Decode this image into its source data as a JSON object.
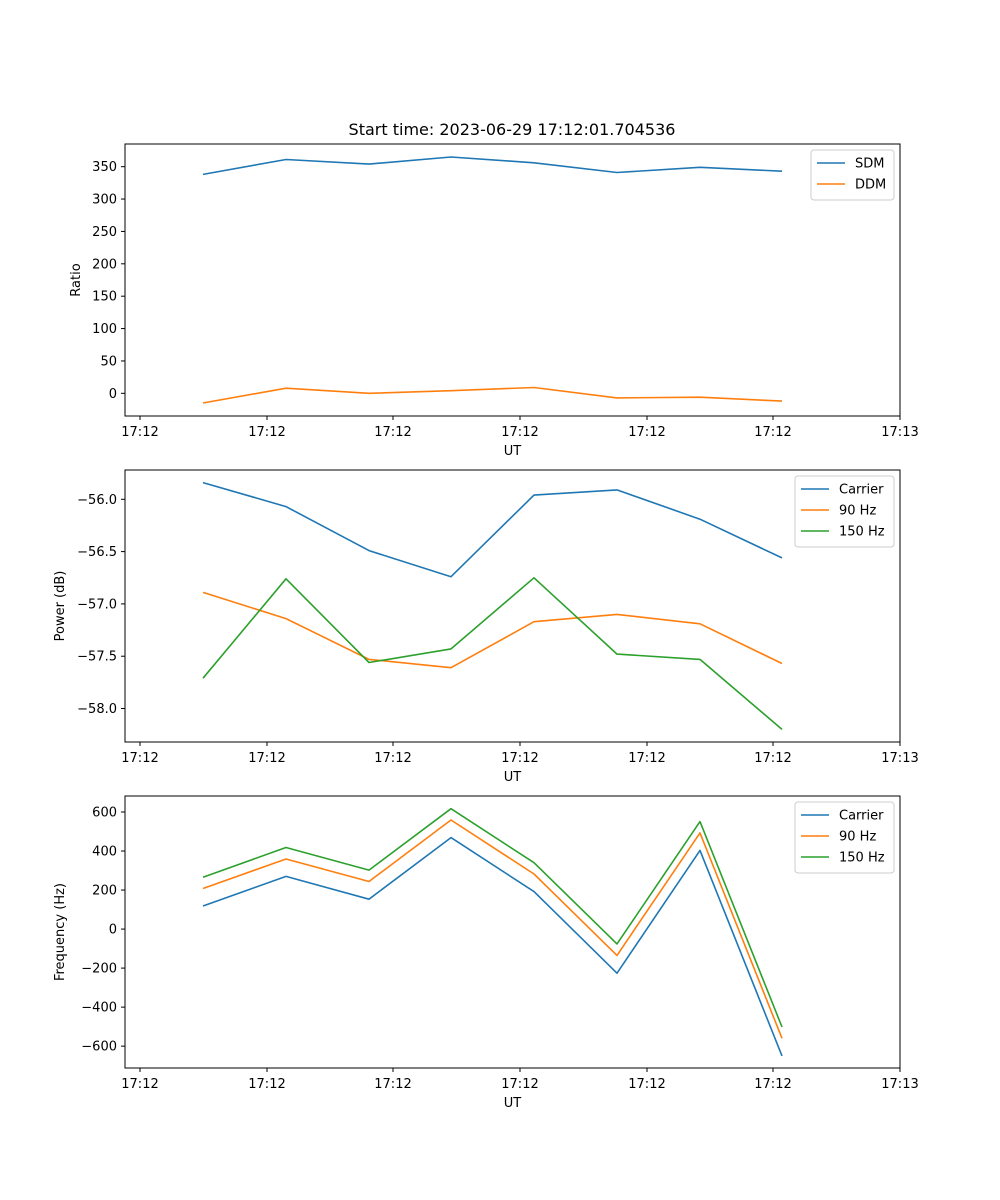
{
  "figure_title": "Start time: 2023-06-29 17:12:01.704536",
  "colors": {
    "blue": "#1f77b4",
    "orange": "#ff7f0e",
    "green": "#2ca02c"
  },
  "chart_data": [
    {
      "type": "line",
      "xlabel": "UT",
      "ylabel": "Ratio",
      "x_tick_labels": [
        "17:12",
        "17:12",
        "17:12",
        "17:12",
        "17:12",
        "17:12",
        "17:13"
      ],
      "y_ticks": [
        0,
        50,
        100,
        150,
        200,
        250,
        300,
        350
      ],
      "ylim": [
        -35,
        385
      ],
      "legend_loc": "upper right",
      "x": [
        1,
        2,
        3,
        4,
        5,
        6,
        7,
        8
      ],
      "series": [
        {
          "name": "SDM",
          "color": "#1f77b4",
          "values": [
            338,
            361,
            354,
            365,
            356,
            341,
            349,
            343
          ]
        },
        {
          "name": "DDM",
          "color": "#ff7f0e",
          "values": [
            -15,
            8,
            0,
            4,
            9,
            -7,
            -6,
            -12
          ]
        }
      ]
    },
    {
      "type": "line",
      "xlabel": "UT",
      "ylabel": "Power (dB)",
      "x_tick_labels": [
        "17:12",
        "17:12",
        "17:12",
        "17:12",
        "17:12",
        "17:12",
        "17:13"
      ],
      "y_ticks": [
        -58.0,
        -57.5,
        -57.0,
        -56.5,
        -56.0
      ],
      "ylim": [
        -58.32,
        -55.72
      ],
      "legend_loc": "upper right",
      "x": [
        1,
        2,
        3,
        4,
        5,
        6,
        7,
        8
      ],
      "series": [
        {
          "name": "Carrier",
          "color": "#1f77b4",
          "values": [
            -55.84,
            -56.07,
            -56.49,
            -56.74,
            -55.96,
            -55.91,
            -56.19,
            -56.56
          ]
        },
        {
          "name": "90 Hz",
          "color": "#ff7f0e",
          "values": [
            -56.89,
            -57.14,
            -57.53,
            -57.61,
            -57.17,
            -57.1,
            -57.19,
            -57.57
          ]
        },
        {
          "name": "150 Hz",
          "color": "#2ca02c",
          "values": [
            -57.71,
            -56.76,
            -57.56,
            -57.43,
            -56.75,
            -57.48,
            -57.53,
            -58.2
          ]
        }
      ]
    },
    {
      "type": "line",
      "xlabel": "UT",
      "ylabel": "Frequency (Hz)",
      "x_tick_labels": [
        "17:12",
        "17:12",
        "17:12",
        "17:12",
        "17:12",
        "17:12",
        "17:13"
      ],
      "y_ticks": [
        -600,
        -400,
        -200,
        0,
        200,
        400,
        600
      ],
      "ylim": [
        -712,
        682
      ],
      "legend_loc": "upper right",
      "x": [
        1,
        2,
        3,
        4,
        5,
        6,
        7,
        8
      ],
      "series": [
        {
          "name": "Carrier",
          "color": "#1f77b4",
          "values": [
            118,
            270,
            153,
            469,
            192,
            -226,
            403,
            -650
          ]
        },
        {
          "name": "90 Hz",
          "color": "#ff7f0e",
          "values": [
            208,
            359,
            244,
            559,
            282,
            -135,
            493,
            -560
          ]
        },
        {
          "name": "150 Hz",
          "color": "#2ca02c",
          "values": [
            266,
            418,
            302,
            617,
            340,
            -76,
            551,
            -502
          ]
        }
      ]
    }
  ]
}
